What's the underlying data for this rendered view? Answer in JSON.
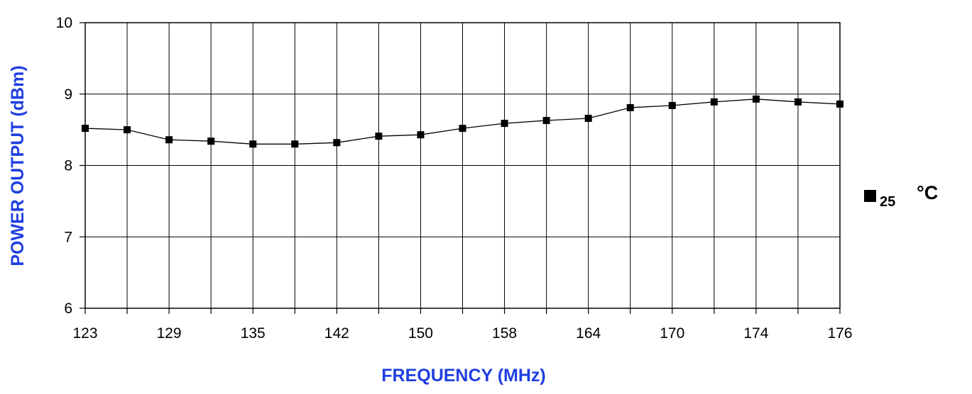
{
  "chart_data": {
    "type": "line",
    "xlabel": "FREQUENCY (MHz)",
    "ylabel": "POWER OUTPUT (dBm)",
    "ylim": [
      6,
      10
    ],
    "yticks": [
      "6",
      "7",
      "8",
      "9",
      "10"
    ],
    "x_tick_labels": [
      "123",
      "129",
      "135",
      "142",
      "150",
      "158",
      "164",
      "170",
      "174",
      "176"
    ],
    "grid": true,
    "legend_placement": "right",
    "series": [
      {
        "name": "25 °C",
        "legend_value": "25",
        "legend_unit": "°C",
        "color": "#000000",
        "marker": "square",
        "values": [
          8.52,
          8.5,
          8.36,
          8.34,
          8.3,
          8.3,
          8.32,
          8.41,
          8.43,
          8.52,
          8.59,
          8.63,
          8.66,
          8.81,
          8.84,
          8.89,
          8.93,
          8.89,
          8.86
        ]
      }
    ]
  }
}
